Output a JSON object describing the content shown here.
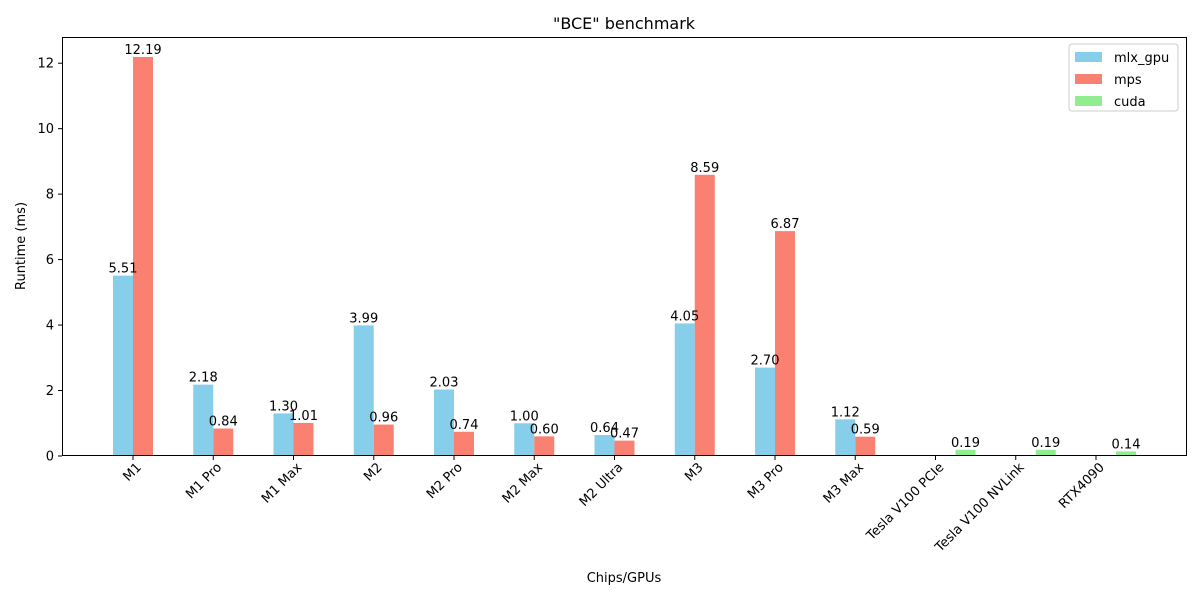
{
  "chart_data": {
    "type": "bar",
    "title": "\"BCE\" benchmark",
    "xlabel": "Chips/GPUs",
    "ylabel": "Runtime (ms)",
    "ylim": [
      0,
      12.8
    ],
    "yticks": [
      0,
      2,
      4,
      6,
      8,
      10,
      12
    ],
    "categories": [
      "M1",
      "M1 Pro",
      "M1 Max",
      "M2",
      "M2 Pro",
      "M2 Max",
      "M2 Ultra",
      "M3",
      "M3 Pro",
      "M3 Max",
      "Tesla V100 PCIe",
      "Tesla V100 NVLink",
      "RTX4090"
    ],
    "series": [
      {
        "name": "mlx_gpu",
        "color": "#87ceeb",
        "values": [
          5.51,
          2.18,
          1.3,
          3.99,
          2.03,
          1.0,
          0.64,
          4.05,
          2.7,
          1.12,
          null,
          null,
          null
        ]
      },
      {
        "name": "mps",
        "color": "#fa8072",
        "values": [
          12.19,
          0.84,
          1.01,
          0.96,
          0.74,
          0.6,
          0.47,
          8.59,
          6.87,
          0.59,
          null,
          null,
          null
        ]
      },
      {
        "name": "cuda",
        "color": "#90ee90",
        "values": [
          null,
          null,
          null,
          null,
          null,
          null,
          null,
          null,
          null,
          null,
          0.19,
          0.19,
          0.14
        ]
      }
    ],
    "legend_position": "top-right",
    "grid": false
  }
}
